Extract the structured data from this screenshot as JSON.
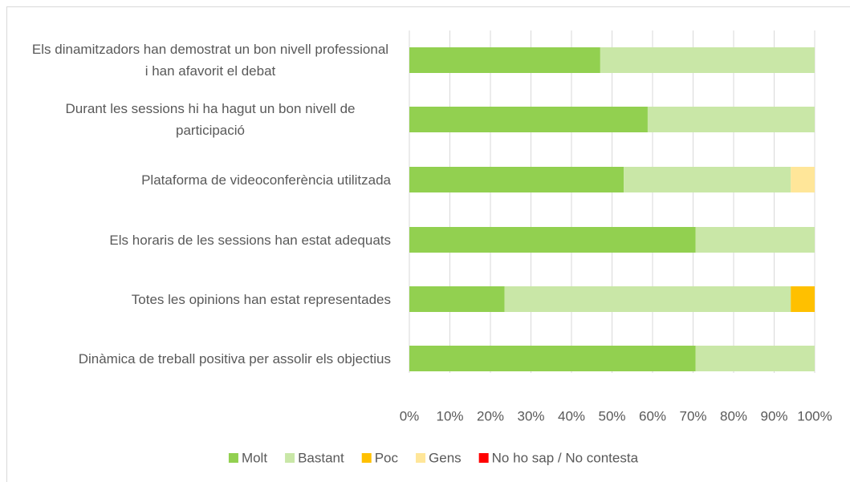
{
  "chart_data": {
    "type": "stacked-barh",
    "categories": [
      "Els dinamitzadors han demostrat un bon nivell professional i han afavorit el debat",
      "Durant les sessions hi ha hagut un bon nivell de participació",
      "Plataforma de videoconferència utilitzada",
      "Els horaris de les sessions han estat adequats",
      "Totes les opinions han estat representades",
      "Dinàmica de treball positiva per assolir els objectius"
    ],
    "series": [
      {
        "name": "Molt",
        "color": "#92d050",
        "values": [
          47.1,
          58.8,
          52.9,
          70.6,
          23.5,
          70.6
        ]
      },
      {
        "name": "Bastant",
        "color": "#c9e7a7",
        "values": [
          52.9,
          41.2,
          41.2,
          29.4,
          70.6,
          29.4
        ]
      },
      {
        "name": "Poc",
        "color": "#ffc000",
        "values": [
          0,
          0,
          0,
          0,
          5.9,
          0
        ]
      },
      {
        "name": "Gens",
        "color": "#ffe699",
        "values": [
          0,
          0,
          5.9,
          0,
          0,
          0
        ]
      },
      {
        "name": "No ho sap / No contesta",
        "color": "#ff0000",
        "values": [
          0,
          0,
          0,
          0,
          0,
          0
        ]
      }
    ],
    "xlim": [
      0,
      100
    ],
    "xticks": [
      {
        "value": 0,
        "label": "0%"
      },
      {
        "value": 10,
        "label": "10%"
      },
      {
        "value": 20,
        "label": "20%"
      },
      {
        "value": 30,
        "label": "30%"
      },
      {
        "value": 40,
        "label": "40%"
      },
      {
        "value": 50,
        "label": "50%"
      },
      {
        "value": 60,
        "label": "60%"
      },
      {
        "value": 70,
        "label": "70%"
      },
      {
        "value": 80,
        "label": "80%"
      },
      {
        "value": 90,
        "label": "90%"
      },
      {
        "value": 100,
        "label": "100%"
      }
    ],
    "grid": true,
    "legend": "bottom"
  }
}
